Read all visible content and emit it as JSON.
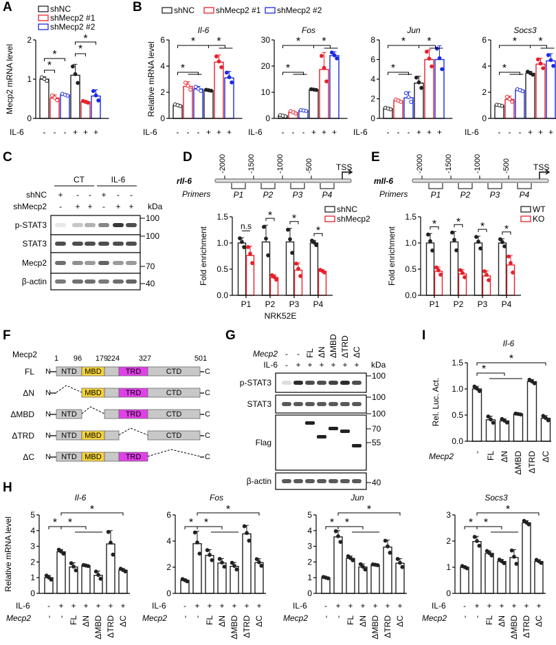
{
  "panels": {
    "A": "A",
    "B": "B",
    "C": "C",
    "D": "D",
    "E": "E",
    "F": "F",
    "G": "G",
    "H": "H",
    "I": "I"
  },
  "colors": {
    "black": "#222222",
    "red": "#e8202a",
    "blue": "#1a2ae0",
    "mbd": "#f5d33a",
    "trd": "#e040e8",
    "grey": "#c8c8c8"
  },
  "common": {
    "il6": "IL-6",
    "mecp2": "Mecp2",
    "kda": "kDa",
    "star": "*",
    "ns": "n.s",
    "minus": "-",
    "plus": "+"
  },
  "chart_data": [
    {
      "id": "A",
      "type": "bar",
      "title": "",
      "ylabel": "Mecp2 mRNA level",
      "ylim": [
        0,
        2
      ],
      "yticks": [
        0,
        1,
        2
      ],
      "legend": [
        "shNC",
        "shMecp2 #1",
        "shMecp2 #2"
      ],
      "legend_position": "top-left",
      "il6": [
        "-",
        "-",
        "-",
        "+",
        "+",
        "+"
      ],
      "groups": [
        "shNC",
        "shMecp2 #1",
        "shMecp2 #2",
        "shNC",
        "shMecp2 #1",
        "shMecp2 #2"
      ],
      "values": [
        1.0,
        0.52,
        0.6,
        1.1,
        0.42,
        0.57
      ],
      "errors": [
        0.06,
        0.08,
        0.03,
        0.28,
        0.03,
        0.16
      ]
    },
    {
      "id": "B1",
      "type": "bar",
      "title": "Il-6",
      "ylabel": "Relative mRNA level",
      "ylim": [
        0,
        6
      ],
      "yticks": [
        0,
        2,
        4,
        6
      ],
      "il6": [
        "-",
        "-",
        "-",
        "+",
        "+",
        "+"
      ],
      "values": [
        1.0,
        2.45,
        2.25,
        2.15,
        4.3,
        3.1
      ],
      "errors": [
        0.08,
        0.35,
        0.2,
        0.05,
        0.55,
        0.5
      ]
    },
    {
      "id": "B2",
      "type": "bar",
      "title": "Fos",
      "ylabel": "",
      "ylim": [
        0,
        30
      ],
      "yticks": [
        0,
        10,
        20,
        30
      ],
      "il6": [
        "-",
        "-",
        "-",
        "+",
        "+",
        "+"
      ],
      "values": [
        1.0,
        2.3,
        3.0,
        11.0,
        18.7,
        24.0
      ],
      "errors": [
        0.3,
        0.6,
        0.2,
        0.2,
        6.5,
        1.5
      ]
    },
    {
      "id": "B3",
      "type": "bar",
      "title": "Jun",
      "ylabel": "",
      "ylim": [
        0,
        8
      ],
      "yticks": [
        0,
        2,
        4,
        6,
        8
      ],
      "il6": [
        "-",
        "-",
        "-",
        "+",
        "+",
        "+"
      ],
      "values": [
        1.0,
        1.8,
        2.1,
        3.6,
        6.0,
        6.0
      ],
      "errors": [
        0.1,
        0.15,
        0.6,
        0.7,
        1.0,
        1.4
      ]
    },
    {
      "id": "B4",
      "type": "bar",
      "title": "Socs3",
      "ylabel": "",
      "ylim": [
        0,
        6
      ],
      "yticks": [
        0,
        2,
        4,
        6
      ],
      "il6": [
        "-",
        "-",
        "-",
        "+",
        "+",
        "+"
      ],
      "values": [
        1.0,
        1.45,
        2.15,
        3.45,
        4.15,
        4.4
      ],
      "errors": [
        0.05,
        0.25,
        0.1,
        0.15,
        0.45,
        0.55
      ]
    },
    {
      "id": "D",
      "type": "bar",
      "title": "",
      "ylabel": "Fold enrichment",
      "xlabel": "NRK52E",
      "ylim": [
        0,
        1.5
      ],
      "yticks": [
        "0.0",
        "0.5",
        "1.0",
        "1.5"
      ],
      "categories": [
        "P1",
        "P2",
        "P3",
        "P4"
      ],
      "legend": [
        "shNC",
        "shMecp2"
      ],
      "legend_position": "top-right",
      "series": [
        {
          "name": "shNC",
          "values": [
            1.0,
            1.02,
            1.02,
            1.0
          ],
          "errors": [
            0.1,
            0.32,
            0.26,
            0.05
          ]
        },
        {
          "name": "shMecp2",
          "values": [
            0.76,
            0.34,
            0.48,
            0.46
          ],
          "errors": [
            0.18,
            0.05,
            0.14,
            0.03
          ]
        }
      ],
      "significance": [
        "n.s",
        "*",
        "*",
        "*"
      ]
    },
    {
      "id": "E",
      "type": "bar",
      "title": "",
      "ylabel": "Fold enrichment",
      "ylim": [
        0,
        1.5
      ],
      "yticks": [
        "0.0",
        "0.5",
        "1.0",
        "1.5"
      ],
      "categories": [
        "P1",
        "P2",
        "P3",
        "P4"
      ],
      "legend": [
        "WT",
        "KO"
      ],
      "legend_position": "top-right",
      "series": [
        {
          "name": "WT",
          "values": [
            1.0,
            1.02,
            1.0,
            1.0
          ],
          "errors": [
            0.18,
            0.2,
            0.13,
            0.08
          ]
        },
        {
          "name": "KO",
          "values": [
            0.46,
            0.41,
            0.37,
            0.58
          ],
          "errors": [
            0.08,
            0.08,
            0.1,
            0.18
          ]
        }
      ],
      "significance": [
        "*",
        "*",
        "*",
        "*"
      ]
    },
    {
      "id": "I",
      "type": "bar",
      "title": "Il-6",
      "ylabel": "Rel. Luc. Act.",
      "ylim": [
        0,
        1.5
      ],
      "yticks": [
        "0.0",
        "0.5",
        "1.0",
        "1.5"
      ],
      "categories": [
        "-",
        "FL",
        "ΔN",
        "ΔMBD",
        "ΔTRD",
        "ΔC"
      ],
      "values": [
        1.0,
        0.41,
        0.39,
        0.52,
        1.14,
        0.44
      ],
      "errors": [
        0.05,
        0.07,
        0.04,
        0.01,
        0.04,
        0.05
      ]
    },
    {
      "id": "H1",
      "type": "bar",
      "title": "Il-6",
      "ylabel": "Relative mRNA level",
      "ylim": [
        0,
        5
      ],
      "yticks": [
        0,
        1,
        2,
        3,
        4,
        5
      ],
      "il6": [
        "-",
        "+",
        "+",
        "+",
        "+",
        "+",
        "+"
      ],
      "mecp2": [
        "-",
        "-",
        "FL",
        "ΔN",
        "ΔMBD",
        "ΔTRD",
        "ΔC"
      ],
      "values": [
        1.0,
        2.65,
        1.68,
        1.77,
        1.15,
        3.15,
        1.48
      ],
      "errors": [
        0.15,
        0.15,
        0.27,
        0.04,
        0.27,
        0.85,
        0.1
      ]
    },
    {
      "id": "H2",
      "type": "bar",
      "title": "Fos",
      "ylabel": "",
      "ylim": [
        0,
        6
      ],
      "yticks": [
        0,
        2,
        4,
        6
      ],
      "il6": [
        "-",
        "+",
        "+",
        "+",
        "+",
        "+",
        "+"
      ],
      "mecp2": [
        "-",
        "-",
        "FL",
        "ΔN",
        "ΔMBD",
        "ΔTRD",
        "ΔC"
      ],
      "values": [
        1.0,
        3.8,
        2.9,
        2.32,
        2.07,
        4.55,
        2.35
      ],
      "errors": [
        0.1,
        0.95,
        0.45,
        0.35,
        0.3,
        0.65,
        0.3
      ]
    },
    {
      "id": "H3",
      "type": "bar",
      "title": "Jun",
      "ylabel": "",
      "ylim": [
        0,
        5
      ],
      "yticks": [
        0,
        1,
        2,
        3,
        4,
        5
      ],
      "il6": [
        "-",
        "+",
        "+",
        "+",
        "+",
        "+",
        "+"
      ],
      "mecp2": [
        "-",
        "-",
        "FL",
        "ΔN",
        "ΔMBD",
        "ΔTRD",
        "ΔC"
      ],
      "values": [
        1.0,
        3.6,
        2.23,
        1.68,
        1.82,
        2.95,
        1.92
      ],
      "errors": [
        0.05,
        0.4,
        0.15,
        0.2,
        0.03,
        0.45,
        0.3
      ]
    },
    {
      "id": "H4",
      "type": "bar",
      "title": "Socs3",
      "ylabel": "",
      "ylim": [
        0,
        3
      ],
      "yticks": [
        0,
        1,
        2,
        3
      ],
      "il6": [
        "-",
        "+",
        "+",
        "+",
        "+",
        "+",
        "+"
      ],
      "mecp2": [
        "-",
        "-",
        "FL",
        "ΔN",
        "ΔMBD",
        "ΔTRD",
        "ΔC"
      ],
      "values": [
        1.0,
        1.98,
        1.53,
        1.22,
        1.37,
        2.7,
        1.22
      ],
      "errors": [
        0.05,
        0.2,
        0.1,
        0.08,
        0.3,
        0.08,
        0.07
      ]
    }
  ],
  "blot_C": {
    "groups": [
      "CT",
      "IL-6"
    ],
    "row_labels": [
      "shNC",
      "shMecp2"
    ],
    "shNC": [
      "+",
      "-",
      "-",
      "+",
      "-",
      "-"
    ],
    "shMecp2": [
      "-",
      "+",
      "+",
      "-",
      "+",
      "+"
    ],
    "bands": [
      "p-STAT3",
      "STAT3",
      "Mecp2",
      "β-actin"
    ],
    "markers": [
      "100",
      "100",
      "70",
      "40"
    ],
    "intensity": {
      "p-STAT3": [
        0.1,
        0.25,
        0.35,
        0.55,
        0.9,
        0.8
      ],
      "STAT3": [
        0.8,
        0.8,
        0.8,
        0.8,
        0.8,
        0.8
      ],
      "Mecp2": [
        0.65,
        0.5,
        0.45,
        0.7,
        0.45,
        0.45
      ],
      "β-actin": [
        0.6,
        0.65,
        0.65,
        0.6,
        0.65,
        0.7
      ]
    }
  },
  "blot_G": {
    "mecp2": [
      "-",
      "-",
      "FL",
      "ΔN",
      "ΔMBD",
      "ΔTRD",
      "ΔC"
    ],
    "il6": [
      "-",
      "+",
      "+",
      "+",
      "+",
      "+",
      "+"
    ],
    "bands": [
      "p-STAT3",
      "STAT3",
      "Flag",
      "β-actin"
    ],
    "markers": [
      "100",
      "100",
      "100",
      "70",
      "55",
      "40"
    ]
  },
  "promoter_D": {
    "gene": "rIl-6",
    "ticks": [
      "-2000",
      "-1500",
      "-1000",
      "-500"
    ],
    "tss": "TSS",
    "primers_label": "Primers",
    "primers": [
      "P1",
      "P2",
      "P3",
      "P4"
    ]
  },
  "promoter_E": {
    "gene": "mIl-6",
    "ticks": [
      "-2000",
      "-1500",
      "-1000",
      "-500"
    ],
    "tss": "TSS",
    "primers_label": "Primers",
    "primers": [
      "P1",
      "P2",
      "P3",
      "P4"
    ]
  },
  "domains_F": {
    "title": "Mecp2",
    "positions": [
      "1",
      "96",
      "179",
      "224",
      "327",
      "501"
    ],
    "constructs": [
      "FL",
      "ΔN",
      "ΔMBD",
      "ΔTRD",
      "ΔC"
    ],
    "domain_names": [
      "NTD",
      "MBD",
      "TRD",
      "CTD"
    ],
    "n": "N",
    "c": "C"
  }
}
